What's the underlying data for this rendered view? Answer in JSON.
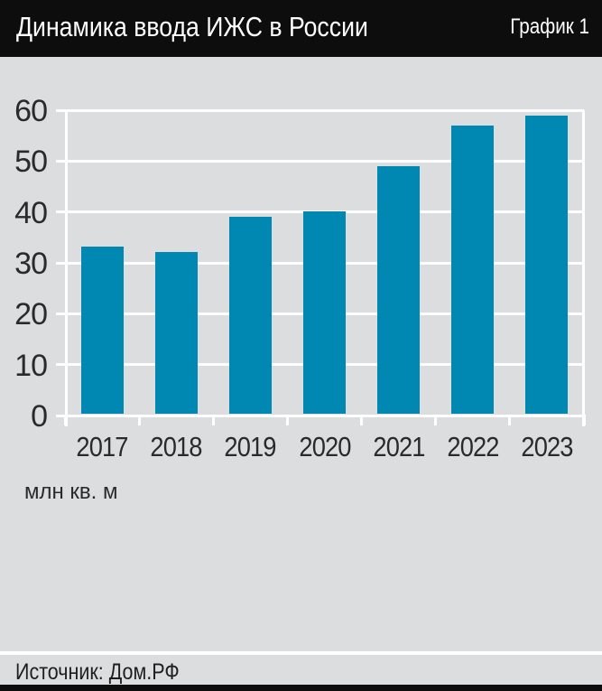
{
  "header": {
    "title": "Динамика ввода ИЖС в России",
    "tag": "График 1"
  },
  "chart_data": {
    "type": "bar",
    "title": "Динамика ввода ИЖС в России",
    "categories": [
      "2017",
      "2018",
      "2019",
      "2020",
      "2021",
      "2022",
      "2023"
    ],
    "values": [
      33,
      32,
      39,
      40,
      49,
      57,
      59
    ],
    "unit_label": "млн кв. м",
    "xlabel": "",
    "ylabel": "млн кв. м",
    "ylim": [
      0,
      60
    ],
    "ytick_step": 10,
    "grid": true,
    "legend": "none",
    "bar_color": "#0088b3"
  },
  "footer": {
    "source": "Источник: Дом.РФ"
  },
  "colors": {
    "header_bg": "#0d0d0d",
    "page_bg": "#dcdddf",
    "bar": "#0088b3",
    "grid": "#ffffff",
    "text": "#2a2a2a"
  }
}
